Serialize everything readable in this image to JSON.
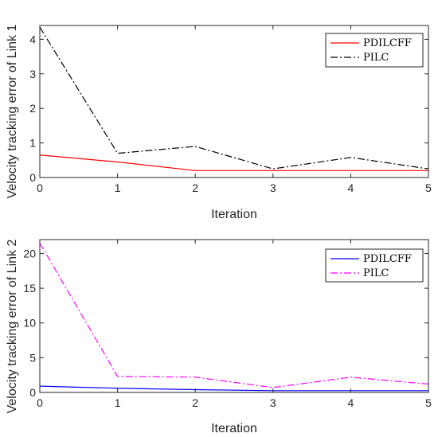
{
  "chart_data": [
    {
      "type": "line",
      "xlabel": "Iteration",
      "ylabel": "Velocity tracking error of Link 1",
      "x": [
        0,
        1,
        2,
        3,
        4,
        5
      ],
      "xlim": [
        0,
        5
      ],
      "ylim": [
        0,
        4.4
      ],
      "xticks": [
        "0",
        "1",
        "2",
        "3",
        "4",
        "5"
      ],
      "yticks": [
        "0",
        "1",
        "2",
        "3",
        "4"
      ],
      "grid": false,
      "legend": "top-right",
      "series": [
        {
          "name": "PDILCFF",
          "color": "#ff0000",
          "dash": "solid",
          "values": [
            0.65,
            0.45,
            0.2,
            0.2,
            0.2,
            0.2
          ]
        },
        {
          "name": "PILC",
          "color": "#000000",
          "dash": "dashdot",
          "values": [
            4.35,
            0.7,
            0.9,
            0.25,
            0.58,
            0.25
          ]
        }
      ]
    },
    {
      "type": "line",
      "xlabel": "Iteration",
      "ylabel": "Velocity tracking error of Link 2",
      "x": [
        0,
        1,
        2,
        3,
        4,
        5
      ],
      "xlim": [
        0,
        5
      ],
      "ylim": [
        0,
        22
      ],
      "xticks": [
        "0",
        "1",
        "2",
        "3",
        "4",
        "5"
      ],
      "yticks": [
        "0",
        "5",
        "10",
        "15",
        "20"
      ],
      "grid": false,
      "legend": "top-right",
      "series": [
        {
          "name": "PDILCFF",
          "color": "#0000ff",
          "dash": "solid",
          "values": [
            0.9,
            0.6,
            0.4,
            0.25,
            0.25,
            0.25
          ]
        },
        {
          "name": "PILC",
          "color": "#ff00ff",
          "dash": "dashdot",
          "values": [
            21.5,
            2.3,
            2.2,
            0.7,
            2.2,
            1.2
          ]
        }
      ]
    }
  ]
}
